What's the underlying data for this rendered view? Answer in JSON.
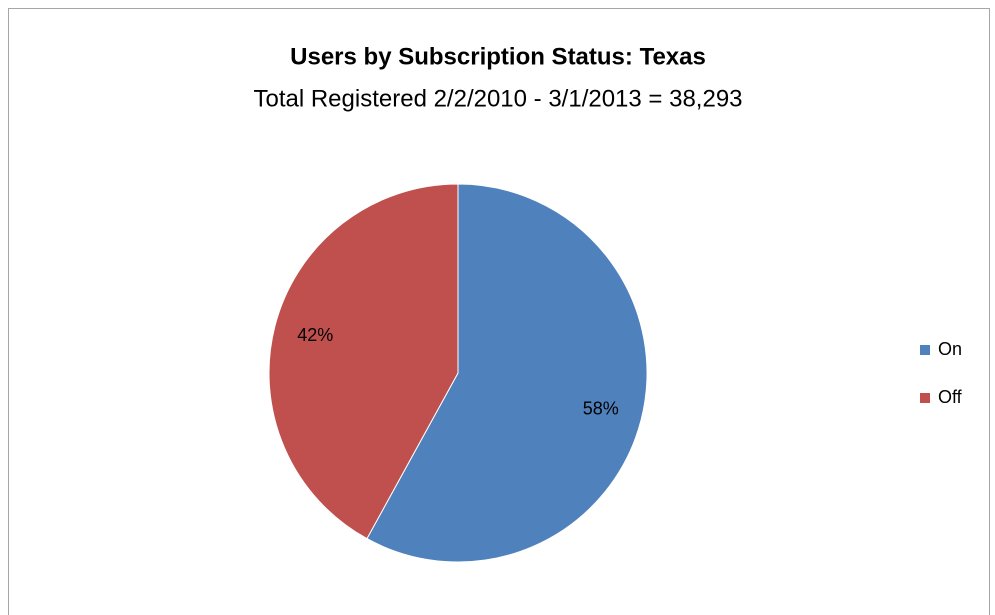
{
  "chart_data": {
    "type": "pie",
    "title": "Users by Subscription Status: Texas",
    "subtitle": "Total Registered 2/2/2010 - 3/1/2013 = 38,293",
    "categories": [
      "On",
      "Off"
    ],
    "values": [
      58,
      42
    ],
    "value_labels": [
      "58%",
      "42%"
    ],
    "colors": [
      "#4f81bd",
      "#c0504d"
    ],
    "legend": "right"
  }
}
